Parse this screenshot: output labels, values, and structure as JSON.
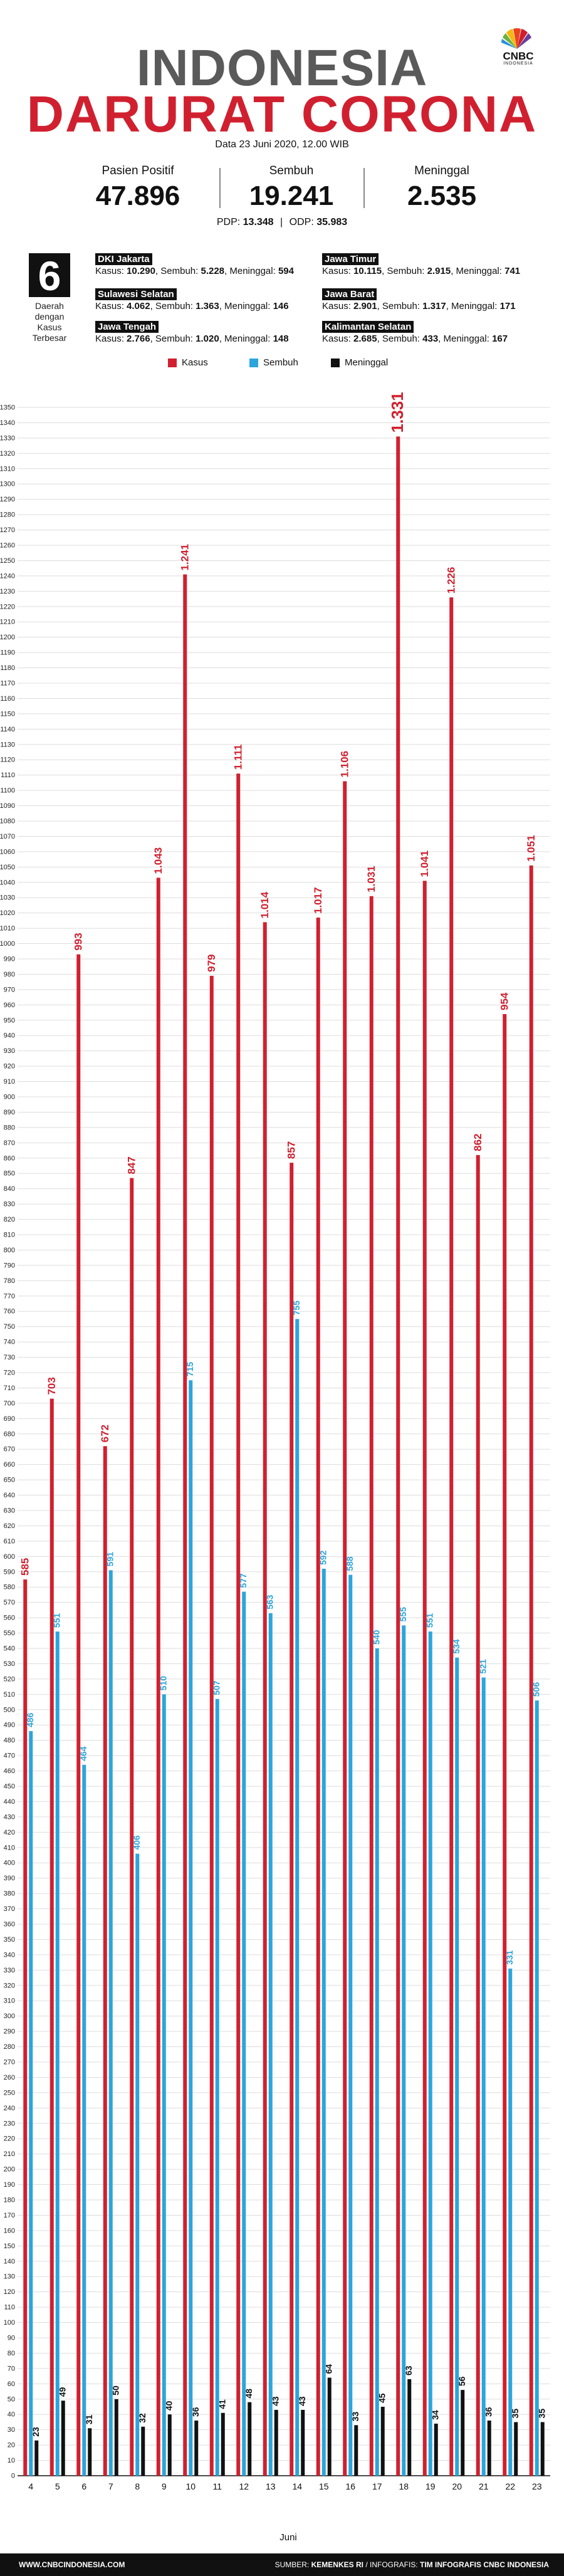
{
  "brand": {
    "name": "CNBC",
    "sub": "INDONESIA"
  },
  "header": {
    "title_line1": "INDONESIA",
    "title_line2": "DARURAT CORONA",
    "date": "Data 23 Juni 2020, 12.00 WIB"
  },
  "stats": [
    {
      "label": "Pasien Positif",
      "value": "47.896"
    },
    {
      "label": "Sembuh",
      "value": "19.241"
    },
    {
      "label": "Meninggal",
      "value": "2.535"
    }
  ],
  "pdp_odp": {
    "pdp_label": "PDP:",
    "pdp": "13.348",
    "sep": "|",
    "odp_label": "ODP:",
    "odp": "35.983"
  },
  "top_regions": {
    "count": "6",
    "label_lines": [
      "Daerah",
      "dengan",
      "Kasus",
      "Terbesar"
    ],
    "items": [
      {
        "name": "DKI Jakarta",
        "kasus_label": "Kasus:",
        "kasus": "10.290",
        "sembuh_label": "Sembuh:",
        "sembuh": "5.228",
        "meninggal_label": "Meninggal:",
        "meninggal": "594"
      },
      {
        "name": "Jawa Timur",
        "kasus_label": "Kasus:",
        "kasus": "10.115",
        "sembuh_label": "Sembuh:",
        "sembuh": "2.915",
        "meninggal_label": "Meninggal:",
        "meninggal": "741"
      },
      {
        "name": "Sulawesi Selatan",
        "kasus_label": "Kasus:",
        "kasus": "4.062",
        "sembuh_label": "Sembuh:",
        "sembuh": "1.363",
        "meninggal_label": "Meninggal:",
        "meninggal": "146"
      },
      {
        "name": "Jawa Barat",
        "kasus_label": "Kasus:",
        "kasus": "2.901",
        "sembuh_label": "Sembuh:",
        "sembuh": "1.317",
        "meninggal_label": "Meninggal:",
        "meninggal": "171"
      },
      {
        "name": "Jawa Tengah",
        "kasus_label": "Kasus:",
        "kasus": "2.766",
        "sembuh_label": "Sembuh:",
        "sembuh": "1.020",
        "meninggal_label": "Meninggal:",
        "meninggal": "148"
      },
      {
        "name": "Kalimantan Selatan",
        "kasus_label": "Kasus:",
        "kasus": "2.685",
        "sembuh_label": "Sembuh:",
        "sembuh": "433",
        "meninggal_label": "Meninggal:",
        "meninggal": "167"
      }
    ]
  },
  "colors": {
    "kasus": "#d0202f",
    "sembuh": "#2aa6dc",
    "meninggal": "#111111",
    "max_label": "#d0202f"
  },
  "chart_data": {
    "type": "bar",
    "categories": [
      "4",
      "5",
      "6",
      "7",
      "8",
      "9",
      "10",
      "11",
      "12",
      "13",
      "14",
      "15",
      "16",
      "17",
      "18",
      "19",
      "20",
      "21",
      "22",
      "23"
    ],
    "series": [
      {
        "name": "Kasus",
        "values": [
          585,
          703,
          993,
          672,
          847,
          1043,
          1241,
          979,
          1111,
          1014,
          857,
          1017,
          1106,
          1031,
          1331,
          1041,
          1226,
          862,
          954,
          1051
        ],
        "labels": [
          "585",
          "703",
          "993",
          "672",
          "847",
          "1.043",
          "1.241",
          "979",
          "1.111",
          "1.014",
          "857",
          "1.017",
          "1.106",
          "1.031",
          "1.331",
          "1.041",
          "1.226",
          "862",
          "954",
          "1.051"
        ]
      },
      {
        "name": "Sembuh",
        "values": [
          486,
          551,
          464,
          591,
          406,
          510,
          715,
          507,
          577,
          563,
          755,
          592,
          588,
          540,
          555,
          551,
          534,
          521,
          331,
          506
        ],
        "labels": [
          "486",
          "551",
          "464",
          "591",
          "406",
          "510",
          "715",
          "507",
          "577",
          "563",
          "755",
          "592",
          "588",
          "540",
          "555",
          "551",
          "534",
          "521",
          "331",
          "506"
        ]
      },
      {
        "name": "Meninggal",
        "values": [
          23,
          49,
          31,
          50,
          32,
          40,
          36,
          41,
          48,
          43,
          43,
          64,
          33,
          45,
          63,
          34,
          56,
          36,
          35,
          35
        ],
        "labels": [
          "23",
          "49",
          "31",
          "50",
          "32",
          "40",
          "36",
          "41",
          "48",
          "43",
          "43",
          "64",
          "33",
          "45",
          "63",
          "34",
          "56",
          "36",
          "35",
          "35"
        ]
      }
    ],
    "xlabel": "Juni",
    "ylim": [
      0,
      1350
    ],
    "ytick_step": 10,
    "grid": true,
    "legend": "top-center"
  },
  "footer": {
    "site": "WWW.CNBCINDONESIA.COM",
    "source_label": "SUMBER:",
    "source": "KEMENKES RI",
    "credit_label": "INFOGRAFIS:",
    "credit": "TIM INFOGRAFIS CNBC INDONESIA"
  }
}
